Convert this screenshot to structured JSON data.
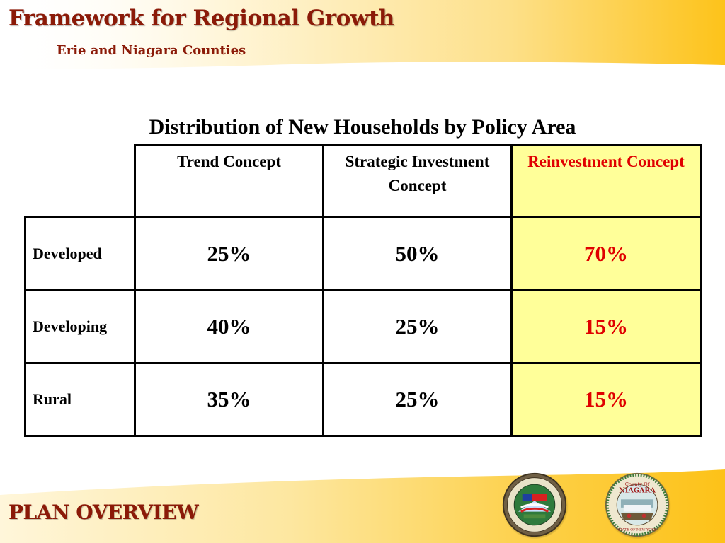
{
  "header": {
    "title": "Framework for Regional Growth",
    "subtitle": "Erie and Niagara Counties"
  },
  "table": {
    "title": "Distribution of New Households by Policy Area",
    "columns": [
      "Trend Concept",
      "Strategic Investment Concept",
      "Reinvestment Concept"
    ],
    "rows": [
      {
        "label": "Developed",
        "values": [
          "25%",
          "50%",
          "70%"
        ]
      },
      {
        "label": "Developing",
        "values": [
          "40%",
          "25%",
          "15%"
        ]
      },
      {
        "label": "Rural",
        "values": [
          "35%",
          "25%",
          "15%"
        ]
      }
    ],
    "highlight_column": "Reinvestment Concept"
  },
  "footer": {
    "label": "PLAN OVERVIEW"
  },
  "seals": {
    "erie": {
      "icon": "erie-county-seal-icon"
    },
    "niagara": {
      "icon": "niagara-county-seal-icon",
      "lettering": "County Of NIAGARA STATE OF NEW YORK"
    }
  },
  "colors": {
    "title": "#8b1a08",
    "band_gold": "#fdc72a",
    "highlight_fill": "#ffff99",
    "highlight_text": "#e00000"
  }
}
